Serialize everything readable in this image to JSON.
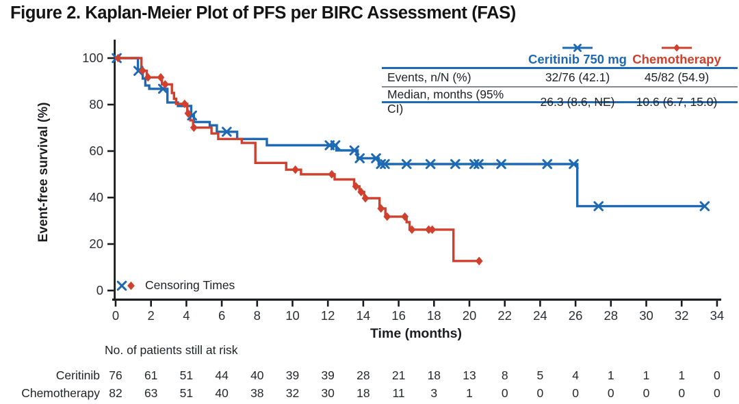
{
  "figure": {
    "title": "Figure 2. Kaplan-Meier Plot of PFS per BIRC Assessment (FAS)"
  },
  "colors": {
    "ceritinib_blue": "#1E69B3",
    "chemotherapy_red": "#D0402E",
    "axis": "#17191c",
    "table_border_gray": "#83898e"
  },
  "chart_data": {
    "type": "line",
    "subtype": "kaplan-meier-step",
    "title": "Kaplan-Meier Plot of PFS per BIRC Assessment (FAS)",
    "xlabel": "Time (months)",
    "ylabel": "Event-free survival (%)",
    "xlim": [
      0,
      34
    ],
    "ylim": [
      0,
      100
    ],
    "grid": false,
    "x_ticks": [
      0,
      2,
      4,
      6,
      8,
      10,
      12,
      14,
      16,
      18,
      20,
      22,
      24,
      26,
      28,
      30,
      32,
      34
    ],
    "y_ticks": [
      0,
      20,
      40,
      60,
      80,
      100
    ],
    "censor_legend": "Censoring Times",
    "series": [
      {
        "name": "Ceritinib 750 mg",
        "marker": "x",
        "steps": [
          [
            0,
            100
          ],
          [
            1.26,
            94.5
          ],
          [
            1.53,
            91.2
          ],
          [
            1.68,
            88.2
          ],
          [
            1.9,
            86.8
          ],
          [
            2.93,
            80.9
          ],
          [
            3.52,
            79.4
          ],
          [
            4.27,
            75.3
          ],
          [
            4.42,
            72.5
          ],
          [
            5.32,
            71.1
          ],
          [
            5.72,
            68.3
          ],
          [
            6.87,
            65.2
          ],
          [
            8.55,
            62.5
          ],
          [
            12.48,
            60.3
          ],
          [
            13.68,
            56.9
          ],
          [
            14.87,
            54.4
          ],
          [
            26.1,
            36.3
          ]
        ],
        "end_x": 33.3,
        "censors": [
          [
            0.06,
            100
          ],
          [
            1.29,
            94.5
          ],
          [
            2.68,
            86.8
          ],
          [
            4.32,
            75.3
          ],
          [
            6.28,
            68.3
          ],
          [
            12.1,
            62.5
          ],
          [
            12.42,
            62.5
          ],
          [
            13.5,
            60.3
          ],
          [
            13.8,
            56.9
          ],
          [
            14.72,
            56.9
          ],
          [
            15.0,
            54.4
          ],
          [
            15.22,
            54.4
          ],
          [
            16.45,
            54.4
          ],
          [
            17.8,
            54.4
          ],
          [
            19.2,
            54.4
          ],
          [
            20.28,
            54.4
          ],
          [
            20.52,
            54.4
          ],
          [
            21.8,
            54.4
          ],
          [
            24.4,
            54.4
          ],
          [
            25.9,
            54.4
          ],
          [
            27.3,
            36.3
          ],
          [
            33.3,
            36.3
          ]
        ]
      },
      {
        "name": "Chemotherapy",
        "marker": "diamond",
        "steps": [
          [
            0,
            100
          ],
          [
            1.46,
            94.6
          ],
          [
            1.76,
            91.7
          ],
          [
            2.62,
            88.7
          ],
          [
            3.18,
            85.0
          ],
          [
            3.3,
            82.5
          ],
          [
            3.42,
            80.3
          ],
          [
            4.05,
            76.2
          ],
          [
            4.22,
            73.2
          ],
          [
            4.38,
            70.1
          ],
          [
            5.42,
            67.6
          ],
          [
            5.8,
            65.2
          ],
          [
            7.13,
            63.5
          ],
          [
            7.9,
            54.9
          ],
          [
            9.64,
            52.0
          ],
          [
            10.48,
            50.0
          ],
          [
            12.38,
            47.8
          ],
          [
            13.48,
            44.8
          ],
          [
            13.78,
            42.4
          ],
          [
            14.05,
            39.7
          ],
          [
            14.92,
            35.3
          ],
          [
            15.25,
            31.8
          ],
          [
            16.45,
            29.4
          ],
          [
            16.62,
            26.2
          ],
          [
            19.1,
            12.7
          ]
        ],
        "end_x": 20.55,
        "censors": [
          [
            0.14,
            100
          ],
          [
            1.52,
            94.6
          ],
          [
            1.83,
            91.7
          ],
          [
            2.55,
            91.7
          ],
          [
            2.8,
            88.7
          ],
          [
            3.9,
            80.3
          ],
          [
            4.1,
            76.2
          ],
          [
            4.42,
            70.1
          ],
          [
            10.16,
            52.0
          ],
          [
            12.22,
            50.0
          ],
          [
            13.58,
            44.8
          ],
          [
            13.88,
            42.4
          ],
          [
            14.12,
            39.7
          ],
          [
            15.0,
            35.3
          ],
          [
            15.35,
            31.8
          ],
          [
            16.35,
            31.8
          ],
          [
            16.75,
            26.2
          ],
          [
            17.7,
            26.2
          ],
          [
            17.9,
            26.2
          ],
          [
            20.55,
            12.7
          ]
        ]
      }
    ]
  },
  "stats_table": {
    "columns": [
      "Ceritinib 750 mg",
      "Chemotherapy"
    ],
    "rows": [
      {
        "label": "Events, n/N (%)",
        "values": [
          "32/76 (42.1)",
          "45/82 (54.9)"
        ]
      },
      {
        "label": "Median, months (95% CI)",
        "values": [
          "26.3 (8.6, NE)",
          "10.6 (6.7, 15.0)"
        ]
      }
    ]
  },
  "risk_table": {
    "title": "No. of patients still at risk",
    "rows": [
      {
        "label": "Ceritinib",
        "values": [
          76,
          61,
          51,
          44,
          40,
          39,
          39,
          28,
          21,
          18,
          13,
          8,
          5,
          4,
          1,
          1,
          1,
          0
        ]
      },
      {
        "label": "Chemotherapy",
        "values": [
          82,
          63,
          51,
          40,
          38,
          32,
          30,
          18,
          11,
          3,
          1,
          0,
          0,
          0,
          0,
          0,
          0,
          0
        ]
      }
    ]
  }
}
